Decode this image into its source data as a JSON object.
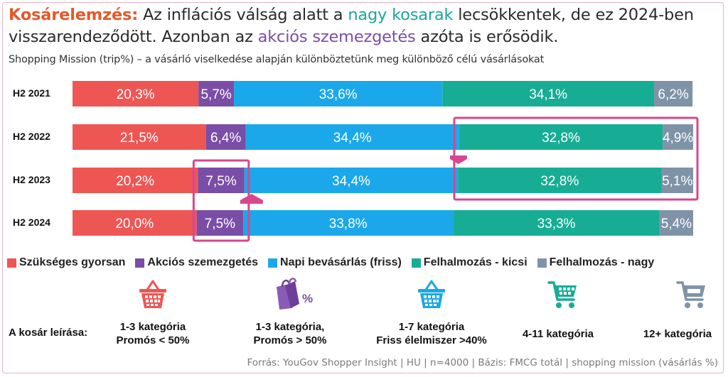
{
  "title": {
    "part1": "Kosárelemzés:",
    "part2": " Az inflációs válság alatt a ",
    "part3": "nagy kosarak",
    "part4": " lecsökkentek, de ez 2024-ben visszarendeződött. Azonban az ",
    "part5": "akciós szemezgetés",
    "part6": " azóta is erősödik."
  },
  "subtitle": "Shopping Mission (trip%) – a vásárló viselkedése alapján különböztetünk meg különböző célú vásárlásokat",
  "chart_data": {
    "type": "bar",
    "orientation": "horizontal-stacked-100",
    "categories": [
      "H2 2021",
      "H2 2022",
      "H2 2023",
      "H2 2024"
    ],
    "series": [
      {
        "name": "Szükséges gyorsan",
        "color": "#ee5654",
        "values": [
          20.3,
          21.5,
          20.2,
          20.0
        ],
        "labels": [
          "20,3%",
          "21,5%",
          "20,2%",
          "20,0%"
        ]
      },
      {
        "name": "Akciós szemezgetés",
        "color": "#7a4ea7",
        "values": [
          5.7,
          6.4,
          7.5,
          7.5
        ],
        "labels": [
          "5,7%",
          "6,4%",
          "7,5%",
          "7,5%"
        ]
      },
      {
        "name": "Napi bevásárlás (friss)",
        "color": "#1ba8ea",
        "values": [
          33.6,
          34.4,
          34.4,
          33.8
        ],
        "labels": [
          "33,6%",
          "34,4%",
          "34,4%",
          "33,8%"
        ]
      },
      {
        "name": "Felhalmozás - kicsi",
        "color": "#17ad95",
        "values": [
          34.1,
          32.8,
          32.8,
          33.3
        ],
        "labels": [
          "34,1%",
          "32,8%",
          "32,8%",
          "33,3%"
        ]
      },
      {
        "name": "Felhalmozás - nagy",
        "color": "#7f93a8",
        "values": [
          6.2,
          4.9,
          5.1,
          5.4
        ],
        "labels": [
          "6,2%",
          "4,9%",
          "5,1%",
          "5,4%"
        ]
      }
    ],
    "highlight_color": "#d9468f"
  },
  "basket": {
    "label": "A kosár leírása:",
    "items": [
      {
        "icon": "basket-icon",
        "color": "#ee5654",
        "line1": "1-3 kategória",
        "line2": "Promós < 50%"
      },
      {
        "icon": "shopping-bag-percent-icon",
        "color": "#7a4ea7",
        "line1": "1-3 kategória,",
        "line2": "Promós > 50%"
      },
      {
        "icon": "basket-icon",
        "color": "#1ba8ea",
        "line1": "1-7 kategória",
        "line2": "Friss élelmiszer >40%"
      },
      {
        "icon": "shopping-cart-icon",
        "color": "#17ad95",
        "line1": "4-11 kategória",
        "line2": ""
      },
      {
        "icon": "shopping-cart-icon",
        "color": "#7f93a8",
        "line1": "12+ kategória",
        "line2": ""
      }
    ]
  },
  "source": "Forrás: YouGov Shopper Insight | HU | n=4000 | Bázis: FMCG totál | shopping mission (vásárlás %)"
}
